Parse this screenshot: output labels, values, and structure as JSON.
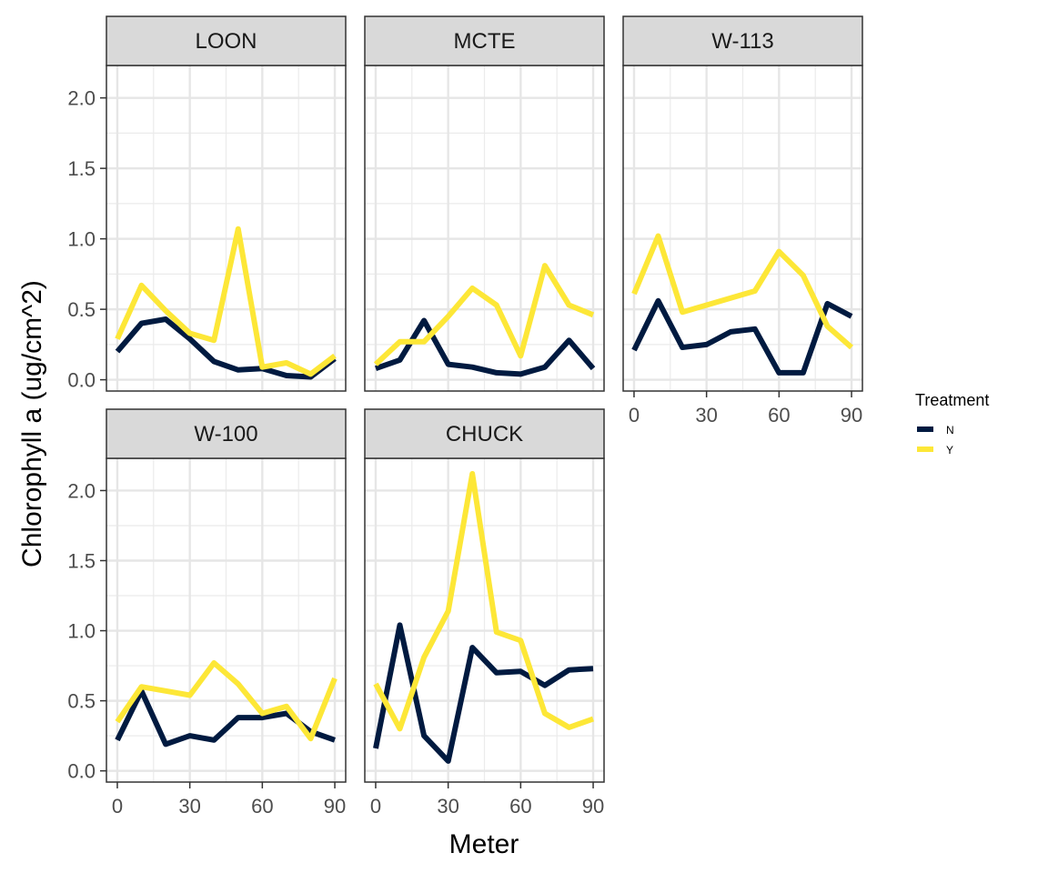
{
  "chart_data": {
    "type": "line",
    "xlabel": "Meter",
    "ylabel": "Chlorophyll a (ug/cm^2)",
    "xlim": [
      -4.5,
      94.5
    ],
    "ylim": [
      -0.08,
      2.23
    ],
    "x_ticks": [
      0,
      30,
      60,
      90
    ],
    "y_ticks": [
      0.0,
      0.5,
      1.0,
      1.5,
      2.0
    ],
    "y_tick_labels": [
      "0.0",
      "0.5",
      "1.0",
      "1.5",
      "2.0"
    ],
    "grid": true,
    "legend": {
      "title": "Treatment",
      "position": "right",
      "entries": [
        {
          "label": "N",
          "color": "#001a40"
        },
        {
          "label": "Y",
          "color": "#fde737"
        }
      ]
    },
    "x": [
      0,
      10,
      20,
      30,
      40,
      50,
      60,
      70,
      80,
      90
    ],
    "panels": [
      {
        "title": "LOON",
        "series": [
          {
            "name": "N",
            "values": [
              0.2,
              0.4,
              0.43,
              0.29,
              0.13,
              0.07,
              0.08,
              0.03,
              0.02,
              0.15
            ]
          },
          {
            "name": "Y",
            "values": [
              0.29,
              0.67,
              0.49,
              0.33,
              0.28,
              1.07,
              0.09,
              0.12,
              0.04,
              0.17
            ]
          }
        ]
      },
      {
        "title": "MCTE",
        "series": [
          {
            "name": "N",
            "values": [
              0.08,
              0.14,
              0.42,
              0.11,
              0.09,
              0.05,
              0.04,
              0.09,
              0.28,
              0.08
            ]
          },
          {
            "name": "Y",
            "values": [
              0.11,
              0.27,
              0.27,
              0.45,
              0.65,
              0.53,
              0.17,
              0.81,
              0.53,
              0.46
            ]
          }
        ]
      },
      {
        "title": "W-113",
        "series": [
          {
            "name": "N",
            "values": [
              0.21,
              0.56,
              0.23,
              0.25,
              0.34,
              0.36,
              0.05,
              0.05,
              0.54,
              0.45
            ]
          },
          {
            "name": "Y",
            "values": [
              0.61,
              1.02,
              0.48,
              0.53,
              0.58,
              0.63,
              0.91,
              0.74,
              0.38,
              0.23
            ]
          }
        ]
      },
      {
        "title": "W-100",
        "series": [
          {
            "name": "N",
            "values": [
              0.22,
              0.57,
              0.19,
              0.25,
              0.22,
              0.38,
              0.38,
              0.41,
              0.28,
              0.22
            ]
          },
          {
            "name": "Y",
            "values": [
              0.35,
              0.6,
              0.57,
              0.54,
              0.77,
              0.62,
              0.41,
              0.46,
              0.23,
              0.66
            ]
          }
        ]
      },
      {
        "title": "CHUCK",
        "series": [
          {
            "name": "N",
            "values": [
              0.16,
              1.04,
              0.25,
              0.07,
              0.88,
              0.7,
              0.71,
              0.61,
              0.72,
              0.73
            ]
          },
          {
            "name": "Y",
            "values": [
              0.62,
              0.3,
              0.81,
              1.14,
              2.12,
              0.99,
              0.93,
              0.41,
              0.31,
              0.37
            ]
          }
        ]
      }
    ]
  }
}
